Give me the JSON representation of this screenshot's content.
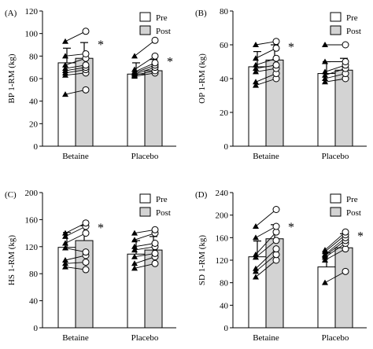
{
  "chart_data": [
    {
      "type": "bar",
      "panel_label": "(A)",
      "ylabel": "BP 1-RM (kg)",
      "ylim": [
        0,
        120
      ],
      "yticks": [
        0,
        20,
        40,
        60,
        80,
        100,
        120
      ],
      "categories": [
        "Betaine",
        "Placebo"
      ],
      "series": [
        {
          "name": "Pre",
          "values": [
            74,
            64
          ],
          "errors": [
            13,
            10
          ]
        },
        {
          "name": "Post",
          "values": [
            78,
            67
          ],
          "errors": [
            14,
            10
          ]
        }
      ],
      "legend": [
        "Pre",
        "Post"
      ],
      "legend_position": "top-right",
      "significance": [
        "*",
        "*"
      ],
      "individuals": [
        {
          "pre": [
            46,
            63,
            65,
            67,
            69,
            72,
            80,
            93
          ],
          "post": [
            50,
            65,
            68,
            70,
            72,
            78,
            82,
            102
          ]
        },
        {
          "pre": [
            62,
            63,
            64,
            65,
            66,
            68,
            80
          ],
          "post": [
            65,
            67,
            70,
            72,
            74,
            80,
            94
          ]
        }
      ]
    },
    {
      "type": "bar",
      "panel_label": "(B)",
      "ylabel": "OP 1-RM (kg)",
      "ylim": [
        0,
        80
      ],
      "yticks": [
        0,
        20,
        40,
        60,
        80
      ],
      "categories": [
        "Betaine",
        "Placebo"
      ],
      "series": [
        {
          "name": "Pre",
          "values": [
            47,
            43
          ],
          "errors": [
            9,
            7
          ]
        },
        {
          "name": "Post",
          "values": [
            51,
            45
          ],
          "errors": [
            9,
            7
          ]
        }
      ],
      "legend": [
        "Pre",
        "Post"
      ],
      "legend_position": "top-right",
      "significance": [
        "*",
        ""
      ],
      "individuals": [
        {
          "pre": [
            36,
            38,
            44,
            46,
            48,
            52,
            60
          ],
          "post": [
            40,
            43,
            46,
            48,
            52,
            58,
            62
          ]
        },
        {
          "pre": [
            38,
            40,
            42,
            44,
            50,
            60
          ],
          "post": [
            40,
            43,
            46,
            48,
            50,
            60
          ]
        }
      ]
    },
    {
      "type": "bar",
      "panel_label": "(C)",
      "ylabel": "HS 1-RM (kg)",
      "ylim": [
        0,
        200
      ],
      "yticks": [
        0,
        40,
        80,
        120,
        160,
        200
      ],
      "categories": [
        "Betaine",
        "Placebo"
      ],
      "series": [
        {
          "name": "Pre",
          "values": [
            119,
            109
          ],
          "errors": [
            22,
            20
          ]
        },
        {
          "name": "Post",
          "values": [
            129,
            115
          ],
          "errors": [
            22,
            20
          ]
        }
      ],
      "legend": [
        "Pre",
        "Post"
      ],
      "legend_position": "top-right",
      "significance": [
        "*",
        ""
      ],
      "individuals": [
        {
          "pre": [
            90,
            95,
            100,
            118,
            125,
            135,
            140
          ],
          "post": [
            86,
            97,
            107,
            112,
            140,
            150,
            155
          ]
        },
        {
          "pre": [
            88,
            95,
            105,
            115,
            120,
            130,
            140
          ],
          "post": [
            95,
            105,
            110,
            120,
            125,
            140,
            145
          ]
        }
      ]
    },
    {
      "type": "bar",
      "panel_label": "(D)",
      "ylabel": "SD 1-RM (kg)",
      "ylim": [
        0,
        240
      ],
      "yticks": [
        0,
        40,
        80,
        120,
        160,
        200,
        240
      ],
      "categories": [
        "Betaine",
        "Placebo"
      ],
      "series": [
        {
          "name": "Pre",
          "values": [
            126,
            108
          ],
          "errors": [
            28,
            25
          ]
        },
        {
          "name": "Post",
          "values": [
            158,
            142
          ],
          "errors": [
            25,
            25
          ]
        }
      ],
      "legend": [
        "Pre",
        "Post"
      ],
      "legend_position": "top-right",
      "significance": [
        "*",
        "*"
      ],
      "individuals": [
        {
          "pre": [
            90,
            100,
            105,
            125,
            130,
            160,
            180
          ],
          "post": [
            120,
            130,
            140,
            155,
            170,
            180,
            210
          ]
        },
        {
          "pre": [
            80,
            120,
            125,
            128,
            130,
            135,
            138
          ],
          "post": [
            100,
            140,
            150,
            155,
            160,
            165,
            170
          ]
        }
      ]
    }
  ],
  "colors": {
    "pre_fill": "#ffffff",
    "post_fill": "#d3d3d3",
    "stroke": "#000000"
  }
}
